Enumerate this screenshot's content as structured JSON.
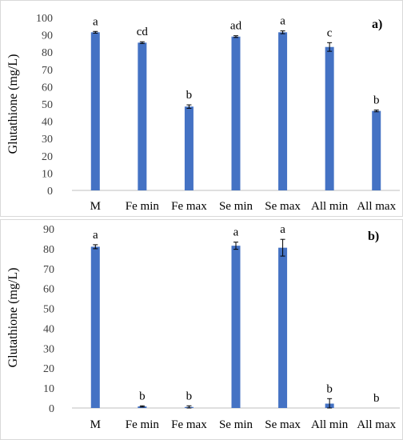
{
  "chart_data": [
    {
      "type": "bar",
      "panel_label": "a)",
      "ylabel": "Glutathione  (mg/L)",
      "ylim": [
        0,
        100
      ],
      "yticks": [
        0,
        10,
        20,
        30,
        40,
        50,
        60,
        70,
        80,
        90,
        100
      ],
      "categories": [
        "M",
        "Fe min",
        "Fe max",
        "Se min",
        "Se max",
        "All min",
        "All max"
      ],
      "values": [
        91.5,
        85.5,
        48.5,
        89.0,
        91.5,
        83.0,
        46.0
      ],
      "errors": [
        0.5,
        0.5,
        1.0,
        0.5,
        0.8,
        2.5,
        0.5
      ],
      "significance": [
        "a",
        "cd",
        "b",
        "ad",
        "a",
        "c",
        "b"
      ],
      "grid": false,
      "bar_color": "#4472c4"
    },
    {
      "type": "bar",
      "panel_label": "b)",
      "ylabel": "Glutathione  (mg/L)",
      "ylim": [
        0,
        90
      ],
      "yticks": [
        0,
        10,
        20,
        30,
        40,
        50,
        60,
        70,
        80,
        90
      ],
      "categories": [
        "M",
        "Fe min",
        "Fe max",
        "Se min",
        "Se max",
        "All min",
        "All max"
      ],
      "values": [
        81.0,
        0.8,
        0.5,
        81.5,
        80.5,
        2.2,
        0.0
      ],
      "errors": [
        1.0,
        0.3,
        0.6,
        1.8,
        4.2,
        2.5,
        0.0
      ],
      "significance": [
        "a",
        "b",
        "b",
        "a",
        "a",
        "b",
        "b"
      ],
      "grid": false,
      "bar_color": "#4472c4"
    }
  ]
}
